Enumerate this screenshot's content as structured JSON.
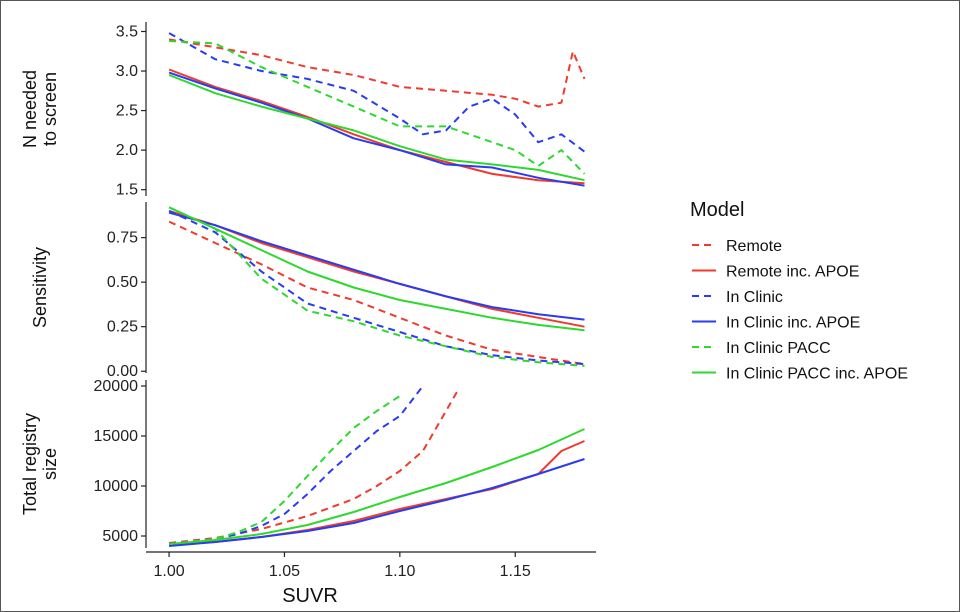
{
  "chart_data": {
    "type": "line",
    "xlabel": "SUVR",
    "x_ticks": [
      "1.00",
      "1.05",
      "1.10",
      "1.15"
    ],
    "xlim": [
      0.99,
      1.185
    ],
    "legend": {
      "title": "Model",
      "placement": "right",
      "entries": [
        {
          "name": "Remote",
          "color": "#f03a2e",
          "dash": true
        },
        {
          "name": "Remote inc. APOE",
          "color": "#f03a2e",
          "dash": false
        },
        {
          "name": "In Clinic",
          "color": "#2a3cf0",
          "dash": true
        },
        {
          "name": "In Clinic inc. APOE",
          "color": "#2a3cf0",
          "dash": false
        },
        {
          "name": "In Clinic PACC",
          "color": "#2ed82e",
          "dash": true
        },
        {
          "name": "In Clinic PACC inc. APOE",
          "color": "#2ed82e",
          "dash": false
        }
      ]
    },
    "panels": [
      {
        "ylabel_lines": [
          "N needed",
          "to screen"
        ],
        "ylim": [
          1.42,
          3.62
        ],
        "y_ticks": [
          1.5,
          2.0,
          2.5,
          3.0,
          3.5
        ],
        "y_tick_labels": [
          "1.5",
          "2.0",
          "2.5",
          "3.0",
          "3.5"
        ],
        "series": [
          {
            "name": "Remote",
            "x": [
              1.0,
              1.02,
              1.04,
              1.06,
              1.08,
              1.1,
              1.12,
              1.14,
              1.15,
              1.16,
              1.17,
              1.175,
              1.18
            ],
            "y": [
              3.4,
              3.3,
              3.2,
              3.05,
              2.95,
              2.8,
              2.75,
              2.7,
              2.65,
              2.55,
              2.6,
              3.25,
              2.9
            ]
          },
          {
            "name": "Remote inc. APOE",
            "x": [
              1.0,
              1.02,
              1.04,
              1.06,
              1.08,
              1.1,
              1.12,
              1.14,
              1.16,
              1.18
            ],
            "y": [
              3.02,
              2.8,
              2.62,
              2.42,
              2.2,
              2.0,
              1.85,
              1.7,
              1.62,
              1.58
            ]
          },
          {
            "name": "In Clinic",
            "x": [
              1.0,
              1.02,
              1.04,
              1.06,
              1.08,
              1.1,
              1.11,
              1.12,
              1.13,
              1.14,
              1.15,
              1.16,
              1.17,
              1.18
            ],
            "y": [
              3.48,
              3.15,
              3.0,
              2.9,
              2.75,
              2.4,
              2.2,
              2.25,
              2.55,
              2.65,
              2.45,
              2.1,
              2.2,
              1.98
            ]
          },
          {
            "name": "In Clinic inc. APOE",
            "x": [
              1.0,
              1.02,
              1.04,
              1.06,
              1.08,
              1.1,
              1.12,
              1.14,
              1.16,
              1.18
            ],
            "y": [
              2.98,
              2.78,
              2.6,
              2.4,
              2.15,
              2.0,
              1.82,
              1.78,
              1.65,
              1.55
            ]
          },
          {
            "name": "In Clinic PACC",
            "x": [
              1.0,
              1.02,
              1.04,
              1.06,
              1.08,
              1.1,
              1.12,
              1.14,
              1.15,
              1.16,
              1.17,
              1.18
            ],
            "y": [
              3.38,
              3.35,
              3.05,
              2.8,
              2.55,
              2.3,
              2.3,
              2.1,
              2.0,
              1.8,
              2.0,
              1.7
            ]
          },
          {
            "name": "In Clinic PACC inc. APOE",
            "x": [
              1.0,
              1.02,
              1.04,
              1.06,
              1.08,
              1.1,
              1.12,
              1.14,
              1.16,
              1.18
            ],
            "y": [
              2.95,
              2.72,
              2.55,
              2.4,
              2.25,
              2.05,
              1.88,
              1.82,
              1.75,
              1.62
            ]
          }
        ]
      },
      {
        "ylabel_lines": [
          "Sensitivity"
        ],
        "ylim": [
          -0.01,
          0.95
        ],
        "y_ticks": [
          0.0,
          0.25,
          0.5,
          0.75
        ],
        "y_tick_labels": [
          "0.00",
          "0.25",
          "0.50",
          "0.75"
        ],
        "series": [
          {
            "name": "Remote",
            "x": [
              1.0,
              1.02,
              1.04,
              1.06,
              1.08,
              1.1,
              1.12,
              1.14,
              1.16,
              1.18
            ],
            "y": [
              0.84,
              0.72,
              0.6,
              0.47,
              0.4,
              0.3,
              0.2,
              0.12,
              0.08,
              0.04
            ]
          },
          {
            "name": "Remote inc. APOE",
            "x": [
              1.0,
              1.02,
              1.04,
              1.06,
              1.08,
              1.1,
              1.12,
              1.14,
              1.16,
              1.18
            ],
            "y": [
              0.9,
              0.82,
              0.72,
              0.64,
              0.56,
              0.49,
              0.42,
              0.35,
              0.3,
              0.25
            ]
          },
          {
            "name": "In Clinic",
            "x": [
              1.0,
              1.02,
              1.04,
              1.06,
              1.08,
              1.1,
              1.12,
              1.14,
              1.16,
              1.18
            ],
            "y": [
              0.9,
              0.78,
              0.56,
              0.38,
              0.3,
              0.22,
              0.14,
              0.09,
              0.06,
              0.04
            ]
          },
          {
            "name": "In Clinic inc. APOE",
            "x": [
              1.0,
              1.02,
              1.04,
              1.06,
              1.08,
              1.1,
              1.12,
              1.14,
              1.16,
              1.18
            ],
            "y": [
              0.89,
              0.82,
              0.73,
              0.65,
              0.57,
              0.49,
              0.42,
              0.36,
              0.32,
              0.29
            ]
          },
          {
            "name": "In Clinic PACC",
            "x": [
              1.0,
              1.02,
              1.04,
              1.06,
              1.08,
              1.1,
              1.12,
              1.14,
              1.16,
              1.18
            ],
            "y": [
              0.92,
              0.8,
              0.52,
              0.34,
              0.28,
              0.2,
              0.14,
              0.08,
              0.05,
              0.03
            ]
          },
          {
            "name": "In Clinic PACC inc. APOE",
            "x": [
              1.0,
              1.02,
              1.04,
              1.06,
              1.08,
              1.1,
              1.12,
              1.14,
              1.16,
              1.18
            ],
            "y": [
              0.92,
              0.8,
              0.68,
              0.56,
              0.47,
              0.4,
              0.35,
              0.3,
              0.26,
              0.23
            ]
          }
        ]
      },
      {
        "ylabel_lines": [
          "Total registry",
          "size"
        ],
        "ylim": [
          3800,
          20600
        ],
        "y_ticks": [
          5000,
          10000,
          15000,
          20000
        ],
        "y_tick_labels": [
          "5000",
          "10000",
          "15000",
          "20000"
        ],
        "series": [
          {
            "name": "Remote",
            "x": [
              1.0,
              1.02,
              1.04,
              1.06,
              1.08,
              1.09,
              1.1,
              1.11,
              1.12,
              1.125
            ],
            "y": [
              4300,
              4800,
              5700,
              7000,
              8700,
              10000,
              11500,
              13500,
              17500,
              19500
            ]
          },
          {
            "name": "Remote inc. APOE",
            "x": [
              1.0,
              1.02,
              1.04,
              1.06,
              1.08,
              1.1,
              1.12,
              1.14,
              1.16,
              1.17,
              1.18
            ],
            "y": [
              4100,
              4400,
              4900,
              5600,
              6500,
              7700,
              8700,
              9700,
              11200,
              13500,
              14500
            ]
          },
          {
            "name": "In Clinic",
            "x": [
              1.0,
              1.02,
              1.03,
              1.04,
              1.05,
              1.06,
              1.07,
              1.08,
              1.09,
              1.1,
              1.105,
              1.11
            ],
            "y": [
              4200,
              4700,
              5200,
              6000,
              7200,
              9200,
              11500,
              13500,
              15500,
              17000,
              18500,
              20000
            ]
          },
          {
            "name": "In Clinic inc. APOE",
            "x": [
              1.0,
              1.02,
              1.04,
              1.06,
              1.08,
              1.1,
              1.12,
              1.14,
              1.16,
              1.18
            ],
            "y": [
              4000,
              4400,
              4900,
              5500,
              6300,
              7500,
              8600,
              9800,
              11200,
              12700
            ]
          },
          {
            "name": "In Clinic PACC",
            "x": [
              1.0,
              1.02,
              1.03,
              1.04,
              1.05,
              1.06,
              1.07,
              1.08,
              1.09,
              1.1
            ],
            "y": [
              4200,
              4700,
              5400,
              6400,
              8500,
              11000,
              13500,
              15800,
              17500,
              19000
            ]
          },
          {
            "name": "In Clinic PACC inc. APOE",
            "x": [
              1.0,
              1.02,
              1.04,
              1.06,
              1.08,
              1.1,
              1.12,
              1.14,
              1.16,
              1.18
            ],
            "y": [
              4200,
              4600,
              5200,
              6100,
              7400,
              8900,
              10300,
              11900,
              13600,
              15700
            ]
          }
        ]
      }
    ]
  }
}
